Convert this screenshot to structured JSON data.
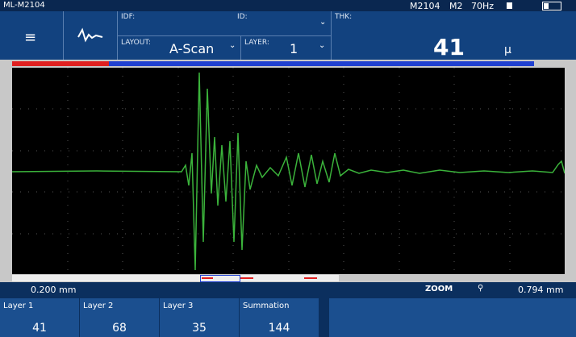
{
  "status_bar": {
    "device": "ML-M2104",
    "model": "M2104",
    "mode": "M2",
    "rate": "70Hz"
  },
  "header": {
    "idf_label": "IDF:",
    "id_label": "ID:",
    "layout_label": "LAYOUT:",
    "layout_value": "A-Scan",
    "layer_label": "LAYER:",
    "layer_value": "1",
    "thk_label": "THK:",
    "thk_value": "41",
    "thk_unit": "μ"
  },
  "range_bar": {
    "start": "0.200 mm",
    "zoom": "ZOOM",
    "end": "0.794 mm"
  },
  "layers": [
    {
      "label": "Layer 1",
      "value": "41"
    },
    {
      "label": "Layer 2",
      "value": "68"
    },
    {
      "label": "Layer 3",
      "value": "35"
    },
    {
      "label": "Summation",
      "value": "144"
    }
  ]
}
